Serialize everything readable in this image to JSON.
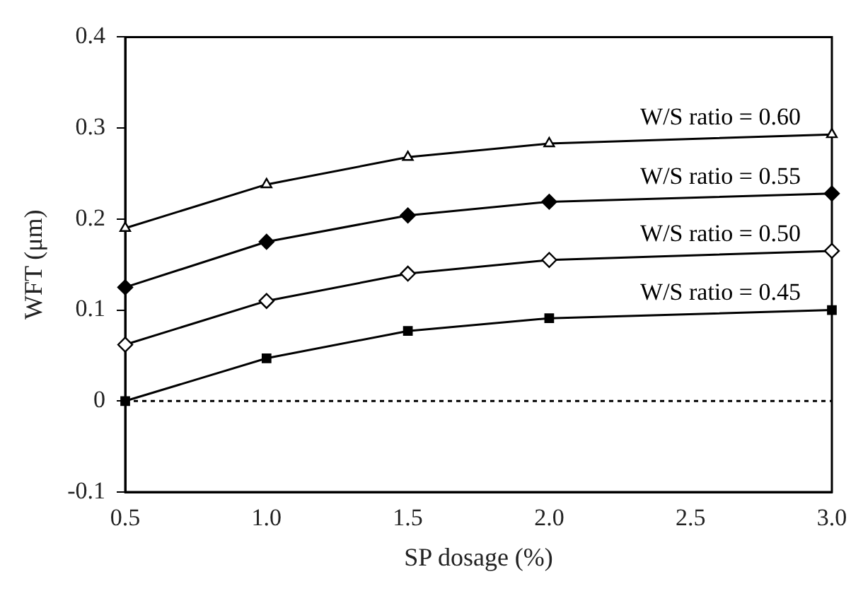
{
  "chart_data": {
    "type": "line",
    "xlabel": "SP dosage (%)",
    "ylabel": "WFT (μm)",
    "x": [
      0.5,
      1.0,
      1.5,
      2.0,
      3.0
    ],
    "series": [
      {
        "name": "W/S ratio = 0.60",
        "color": "#000000",
        "marker": "triangle",
        "values": [
          0.19,
          0.238,
          0.268,
          0.283,
          0.293
        ]
      },
      {
        "name": "W/S ratio = 0.55",
        "color": "#000000",
        "marker": "diamond",
        "values": [
          0.125,
          0.175,
          0.204,
          0.219,
          0.228
        ]
      },
      {
        "name": "W/S ratio = 0.50",
        "color": "#000000",
        "marker": "diamond",
        "values": [
          0.062,
          0.11,
          0.14,
          0.155,
          0.165
        ]
      },
      {
        "name": "W/S ratio = 0.45",
        "color": "#000000",
        "marker": "square",
        "values": [
          0,
          0.047,
          0.077,
          0.091,
          0.1
        ]
      }
    ],
    "xlim": [
      0.5,
      3.0
    ],
    "xticks": [
      0.5,
      {
        "value": 1.0,
        "label": "1.0"
      },
      1.5,
      {
        "value": 2.0,
        "label": "2.0"
      },
      2.5,
      {
        "value": 3.0,
        "label": "3.0"
      }
    ],
    "ylim": [
      -0.1,
      0.4
    ],
    "yticks": [
      -0.1,
      0,
      0.1,
      0.2,
      0.3,
      0.4
    ],
    "ref_lines": [
      {
        "axis": "y",
        "value": 0,
        "line_style": "dotted",
        "color": "#000000"
      }
    ],
    "grid": false,
    "legend": false,
    "line_style": "solid"
  }
}
